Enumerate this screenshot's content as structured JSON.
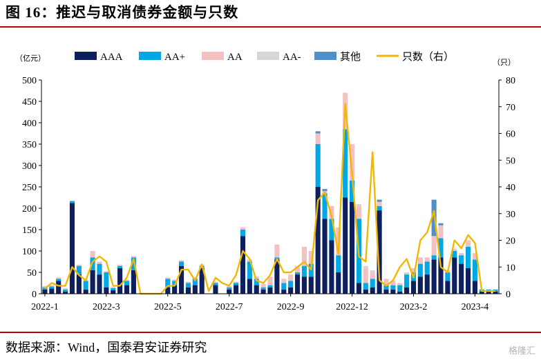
{
  "header": {
    "title": "图 16：推迟与取消债券金额与只数"
  },
  "footer": {
    "source": "数据来源：Wind，国泰君安证券研究",
    "watermark": "格隆汇"
  },
  "colors": {
    "AAA": "#0d1f5c",
    "AA+": "#00a8e6",
    "AA": "#f3c1c1",
    "AA-": "#d6d6d6",
    "其他": "#4e90cc",
    "count": "#f2b705",
    "rule": "#c00000"
  },
  "chart_data": {
    "type": "bar",
    "stacked": true,
    "left_unit": "（亿元）",
    "right_unit": "（只）",
    "ylim_left": [
      0,
      500
    ],
    "ylim_right": [
      0,
      80
    ],
    "yticks_left": [
      0,
      50,
      100,
      150,
      200,
      250,
      300,
      350,
      400,
      450,
      500
    ],
    "yticks_right": [
      0,
      10,
      20,
      30,
      40,
      50,
      60,
      70,
      80
    ],
    "x_tick_labels": [
      {
        "index": 0,
        "label": "2022-1"
      },
      {
        "index": 9,
        "label": "2022-3"
      },
      {
        "index": 18,
        "label": "2022-5"
      },
      {
        "index": 27,
        "label": "2022-7"
      },
      {
        "index": 36,
        "label": "2022-9"
      },
      {
        "index": 45,
        "label": "2022-12"
      },
      {
        "index": 54,
        "label": "2023-2"
      },
      {
        "index": 63,
        "label": "2023-4"
      }
    ],
    "n_periods": 67,
    "legend": [
      "AAA",
      "AA+",
      "AA",
      "AA-",
      "其他",
      "只数（右）"
    ],
    "legend_position": "top",
    "series": [
      {
        "name": "AAA",
        "values": [
          10,
          12,
          30,
          5,
          212,
          45,
          10,
          55,
          45,
          15,
          8,
          60,
          20,
          55,
          0,
          0,
          0,
          0,
          15,
          20,
          65,
          15,
          20,
          60,
          0,
          20,
          0,
          10,
          20,
          135,
          35,
          20,
          10,
          15,
          80,
          10,
          15,
          45,
          40,
          40,
          250,
          175,
          125,
          50,
          225,
          215,
          25,
          10,
          15,
          195,
          10,
          10,
          5,
          15,
          30,
          40,
          45,
          80,
          85,
          30,
          85,
          70,
          60,
          30,
          5,
          5,
          5
        ]
      },
      {
        "name": "AA+",
        "values": [
          5,
          5,
          5,
          5,
          5,
          20,
          20,
          30,
          25,
          35,
          5,
          5,
          10,
          30,
          0,
          0,
          0,
          0,
          20,
          10,
          10,
          10,
          15,
          5,
          0,
          5,
          0,
          5,
          5,
          15,
          40,
          15,
          5,
          5,
          5,
          15,
          15,
          5,
          25,
          30,
          100,
          60,
          50,
          40,
          160,
          50,
          150,
          15,
          20,
          10,
          10,
          10,
          15,
          30,
          20,
          30,
          30,
          10,
          45,
          20,
          15,
          20,
          50,
          50,
          5,
          5,
          5
        ]
      },
      {
        "name": "AA",
        "values": [
          3,
          3,
          3,
          3,
          0,
          3,
          3,
          15,
          5,
          3,
          3,
          3,
          3,
          3,
          0,
          0,
          0,
          0,
          3,
          3,
          3,
          3,
          3,
          3,
          0,
          3,
          0,
          3,
          3,
          5,
          5,
          5,
          8,
          20,
          30,
          10,
          15,
          15,
          45,
          30,
          25,
          5,
          30,
          65,
          85,
          85,
          30,
          35,
          15,
          10,
          15,
          10,
          5,
          5,
          10,
          15,
          10,
          45,
          30,
          5,
          5,
          5,
          15,
          15,
          0,
          0,
          0
        ]
      },
      {
        "name": "AA-",
        "values": [
          0,
          0,
          0,
          0,
          0,
          0,
          0,
          0,
          0,
          0,
          0,
          0,
          0,
          0,
          0,
          0,
          0,
          0,
          0,
          0,
          0,
          0,
          0,
          0,
          0,
          0,
          0,
          0,
          0,
          0,
          0,
          0,
          0,
          0,
          0,
          0,
          0,
          0,
          0,
          0,
          0,
          0,
          0,
          0,
          0,
          0,
          5,
          5,
          5,
          0,
          0,
          0,
          0,
          0,
          0,
          0,
          0,
          0,
          0,
          0,
          0,
          0,
          0,
          0,
          0,
          0,
          0
        ]
      },
      {
        "name": "其他",
        "values": [
          0,
          0,
          0,
          0,
          0,
          0,
          0,
          0,
          0,
          0,
          0,
          0,
          0,
          0,
          0,
          0,
          0,
          0,
          0,
          0,
          0,
          0,
          0,
          0,
          0,
          0,
          0,
          0,
          0,
          0,
          0,
          0,
          0,
          0,
          0,
          0,
          0,
          0,
          0,
          0,
          5,
          5,
          0,
          0,
          0,
          0,
          0,
          0,
          0,
          5,
          0,
          0,
          0,
          0,
          0,
          0,
          0,
          85,
          5,
          0,
          0,
          0,
          0,
          0,
          0,
          0,
          0
        ]
      },
      {
        "name": "只数（右）",
        "axis": "right",
        "type": "line",
        "values": [
          2,
          4,
          3,
          3,
          10,
          7,
          5,
          12,
          14,
          12,
          3,
          3,
          6,
          13,
          0,
          0,
          0,
          0,
          3,
          3,
          9,
          9,
          5,
          11,
          1,
          6,
          4,
          3,
          7,
          16,
          13,
          5,
          4,
          7,
          13,
          8,
          8,
          10,
          12,
          9,
          35,
          38,
          29,
          15,
          71,
          45,
          14,
          12,
          53,
          5,
          3,
          5,
          10,
          13,
          6,
          20,
          23,
          31,
          10,
          8,
          20,
          17,
          22,
          19,
          1,
          1,
          1
        ]
      }
    ]
  }
}
